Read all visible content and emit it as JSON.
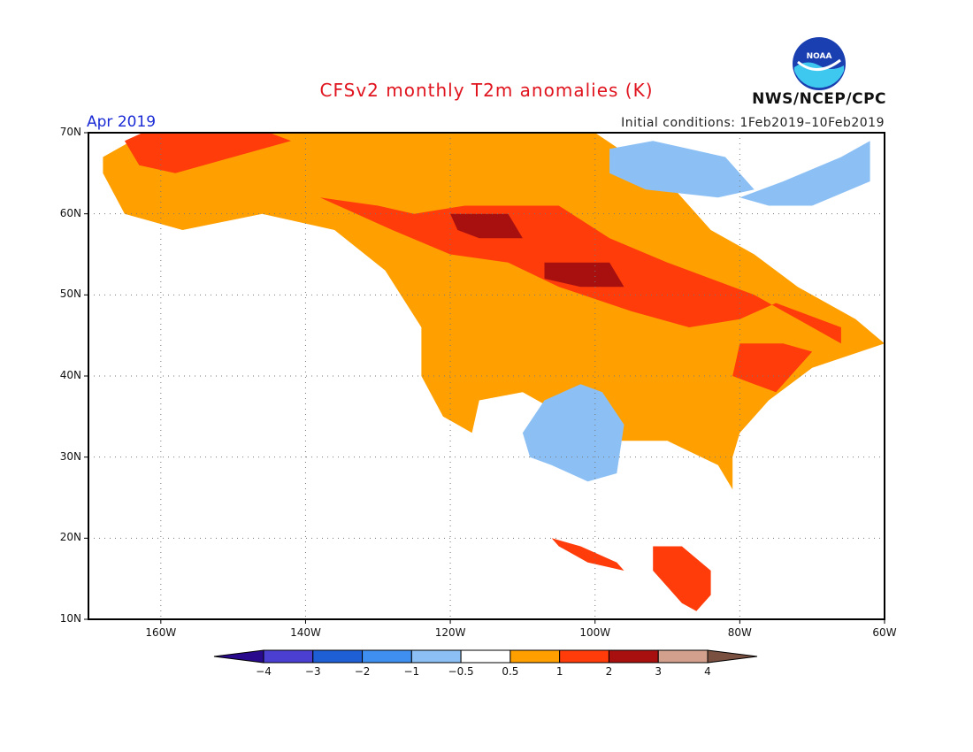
{
  "header": {
    "title": "CFSv2 monthly T2m anomalies (K)",
    "period": "Apr 2019",
    "initial_conditions": "Initial conditions: 1Feb2019–10Feb2019",
    "agency": "NWS/NCEP/CPC",
    "logo_text": "NOAA"
  },
  "map": {
    "projection": "equirectangular",
    "lon_range": [
      -170,
      -60
    ],
    "lat_range": [
      10,
      70
    ],
    "lat_ticks": [
      {
        "value": 70,
        "label": "70N"
      },
      {
        "value": 60,
        "label": "60N"
      },
      {
        "value": 50,
        "label": "50N"
      },
      {
        "value": 40,
        "label": "40N"
      },
      {
        "value": 30,
        "label": "30N"
      },
      {
        "value": 20,
        "label": "20N"
      },
      {
        "value": 10,
        "label": "10N"
      }
    ],
    "lon_ticks": [
      {
        "value": -160,
        "label": "160W"
      },
      {
        "value": -140,
        "label": "140W"
      },
      {
        "value": -120,
        "label": "120W"
      },
      {
        "value": -100,
        "label": "100W"
      },
      {
        "value": -80,
        "label": "80W"
      },
      {
        "value": -60,
        "label": "60W"
      }
    ],
    "gridlines": "dotted"
  },
  "colorbar": {
    "levels": [
      {
        "label": "−4"
      },
      {
        "label": "−3"
      },
      {
        "label": "−2"
      },
      {
        "label": "−1"
      },
      {
        "label": "−0.5"
      },
      {
        "label": "0.5"
      },
      {
        "label": "1"
      },
      {
        "label": "2"
      },
      {
        "label": "3"
      },
      {
        "label": "4"
      }
    ],
    "colors": [
      "#2a0a8c",
      "#4a3fd0",
      "#1f5fd6",
      "#3f8ff0",
      "#8cc0f5",
      "#ffffff",
      "#ffa000",
      "#ff3c0a",
      "#a81010",
      "#d2a08c",
      "#7a5040"
    ]
  },
  "anomaly_regions": [
    {
      "level": 1,
      "color": "#ffa000",
      "polygon": [
        [
          -168,
          67
        ],
        [
          -160,
          71
        ],
        [
          -148,
          70
        ],
        [
          -141,
          70
        ],
        [
          -120,
          70
        ],
        [
          -100,
          70
        ],
        [
          -95,
          67
        ],
        [
          -90,
          64
        ],
        [
          -84,
          58
        ],
        [
          -78,
          55
        ],
        [
          -72,
          51
        ],
        [
          -64,
          47
        ],
        [
          -60,
          44
        ],
        [
          -70,
          41
        ],
        [
          -76,
          37
        ],
        [
          -80,
          33
        ],
        [
          -81,
          30
        ],
        [
          -81,
          26
        ],
        [
          -83,
          29
        ],
        [
          -90,
          32
        ],
        [
          -97,
          32
        ],
        [
          -104,
          35
        ],
        [
          -110,
          38
        ],
        [
          -116,
          37
        ],
        [
          -117,
          33
        ],
        [
          -121,
          35
        ],
        [
          -124,
          40
        ],
        [
          -124,
          46
        ],
        [
          -129,
          53
        ],
        [
          -136,
          58
        ],
        [
          -146,
          60
        ],
        [
          -157,
          58
        ],
        [
          -165,
          60
        ],
        [
          -168,
          65
        ]
      ]
    },
    {
      "level": 2,
      "color": "#ff3c0a",
      "polygon": [
        [
          -165,
          69
        ],
        [
          -160,
          71
        ],
        [
          -145,
          70
        ],
        [
          -142,
          69
        ],
        [
          -150,
          67
        ],
        [
          -158,
          65
        ],
        [
          -163,
          66
        ]
      ]
    },
    {
      "level": 2,
      "color": "#ff3c0a",
      "polygon": [
        [
          -138,
          62
        ],
        [
          -130,
          61
        ],
        [
          -125,
          60
        ],
        [
          -118,
          61
        ],
        [
          -105,
          61
        ],
        [
          -98,
          57
        ],
        [
          -90,
          54
        ],
        [
          -84,
          52
        ],
        [
          -78,
          50
        ],
        [
          -72,
          47
        ],
        [
          -66,
          44
        ],
        [
          -66,
          46
        ],
        [
          -75,
          49
        ],
        [
          -80,
          47
        ],
        [
          -87,
          46
        ],
        [
          -95,
          48
        ],
        [
          -105,
          51
        ],
        [
          -112,
          54
        ],
        [
          -120,
          55
        ],
        [
          -128,
          58
        ]
      ]
    },
    {
      "level": 2,
      "color": "#ff3c0a",
      "polygon": [
        [
          -80,
          44
        ],
        [
          -74,
          44
        ],
        [
          -70,
          43
        ],
        [
          -73,
          40
        ],
        [
          -75,
          38
        ],
        [
          -78,
          39
        ],
        [
          -81,
          40
        ]
      ]
    },
    {
      "level": 2,
      "color": "#ff3c0a",
      "polygon": [
        [
          -92,
          19
        ],
        [
          -88,
          19
        ],
        [
          -84,
          16
        ],
        [
          -84,
          13
        ],
        [
          -86,
          11
        ],
        [
          -88,
          12
        ],
        [
          -90,
          14
        ],
        [
          -92,
          16
        ]
      ]
    },
    {
      "level": 2,
      "color": "#ff3c0a",
      "polygon": [
        [
          -106,
          20
        ],
        [
          -102,
          19
        ],
        [
          -97,
          17
        ],
        [
          -96,
          16
        ],
        [
          -101,
          17
        ],
        [
          -105,
          19
        ]
      ]
    },
    {
      "level": 3,
      "color": "#a81010",
      "polygon": [
        [
          -120,
          60
        ],
        [
          -112,
          60
        ],
        [
          -110,
          57
        ],
        [
          -116,
          57
        ],
        [
          -119,
          58
        ]
      ]
    },
    {
      "level": 3,
      "color": "#a81010",
      "polygon": [
        [
          -107,
          54
        ],
        [
          -98,
          54
        ],
        [
          -96,
          51
        ],
        [
          -102,
          51
        ],
        [
          -107,
          52
        ]
      ]
    },
    {
      "level": -1,
      "color": "#8cc0f5",
      "polygon": [
        [
          -107,
          37
        ],
        [
          -102,
          39
        ],
        [
          -99,
          38
        ],
        [
          -96,
          34
        ],
        [
          -97,
          28
        ],
        [
          -101,
          27
        ],
        [
          -106,
          29
        ],
        [
          -109,
          30
        ],
        [
          -110,
          33
        ]
      ]
    },
    {
      "level": -1,
      "color": "#8cc0f5",
      "polygon": [
        [
          -98,
          68
        ],
        [
          -92,
          69
        ],
        [
          -82,
          67
        ],
        [
          -78,
          63
        ],
        [
          -83,
          62
        ],
        [
          -93,
          63
        ],
        [
          -98,
          65
        ]
      ]
    },
    {
      "level": -1,
      "color": "#8cc0f5",
      "polygon": [
        [
          -80,
          62
        ],
        [
          -74,
          64
        ],
        [
          -66,
          67
        ],
        [
          -62,
          69
        ],
        [
          -62,
          64
        ],
        [
          -70,
          61
        ],
        [
          -76,
          61
        ]
      ]
    }
  ]
}
